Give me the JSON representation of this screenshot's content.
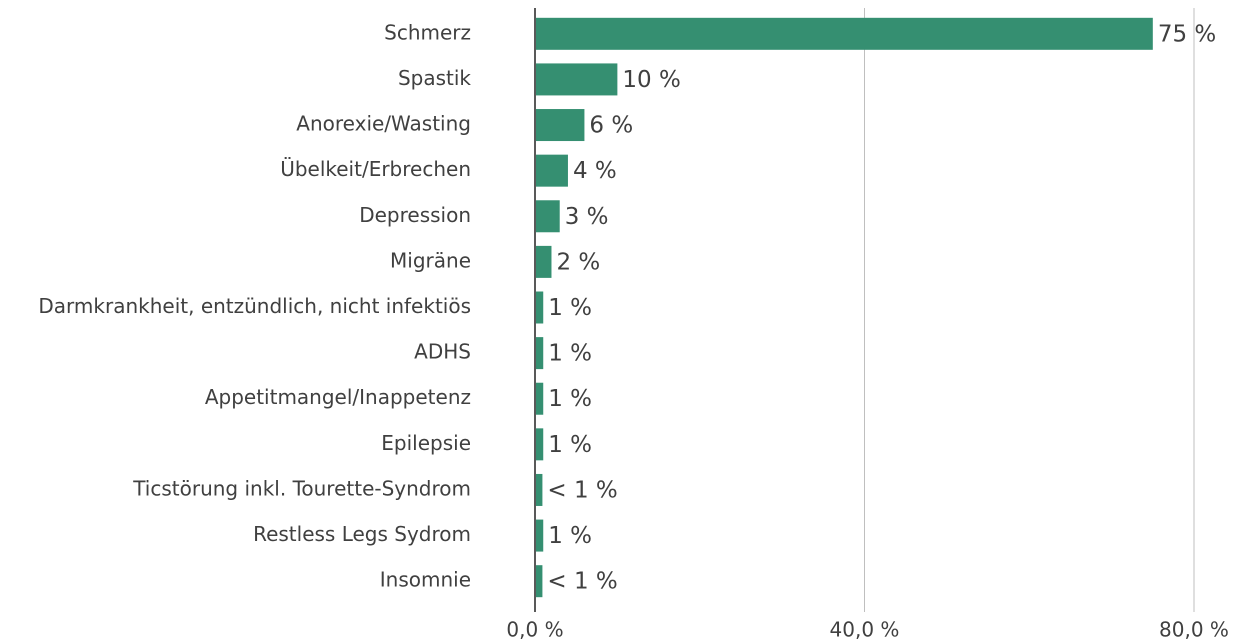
{
  "chart_data": {
    "type": "barh",
    "categories": [
      "Schmerz",
      "Spastik",
      "Anorexie/Wasting",
      "Übelkeit/Erbrechen",
      "Depression",
      "Migräne",
      "Darmkrankheit, entzündlich, nicht infektiös",
      "ADHS",
      "Appetitmangel/Inappetenz",
      "Epilepsie",
      "Ticstörung inkl. Tourette-Syndrom",
      "Restless Legs Sydrom",
      "Insomnie"
    ],
    "values": [
      75,
      10,
      6,
      4,
      3,
      2,
      1,
      1,
      1,
      1,
      0.9,
      1,
      0.9
    ],
    "value_labels": [
      "75 %",
      "10 %",
      "6 %",
      "4 %",
      "3 %",
      "2 %",
      "1 %",
      "1 %",
      "1 %",
      "1 %",
      "< 1 %",
      "1 %",
      "< 1 %"
    ],
    "color": "#358f71",
    "xlim": [
      0,
      80
    ],
    "xticks": [
      {
        "value": 0,
        "label": "0,0 %"
      },
      {
        "value": 40,
        "label": "40,0 %"
      },
      {
        "value": 80,
        "label": "80,0 %"
      }
    ],
    "grid": true
  }
}
